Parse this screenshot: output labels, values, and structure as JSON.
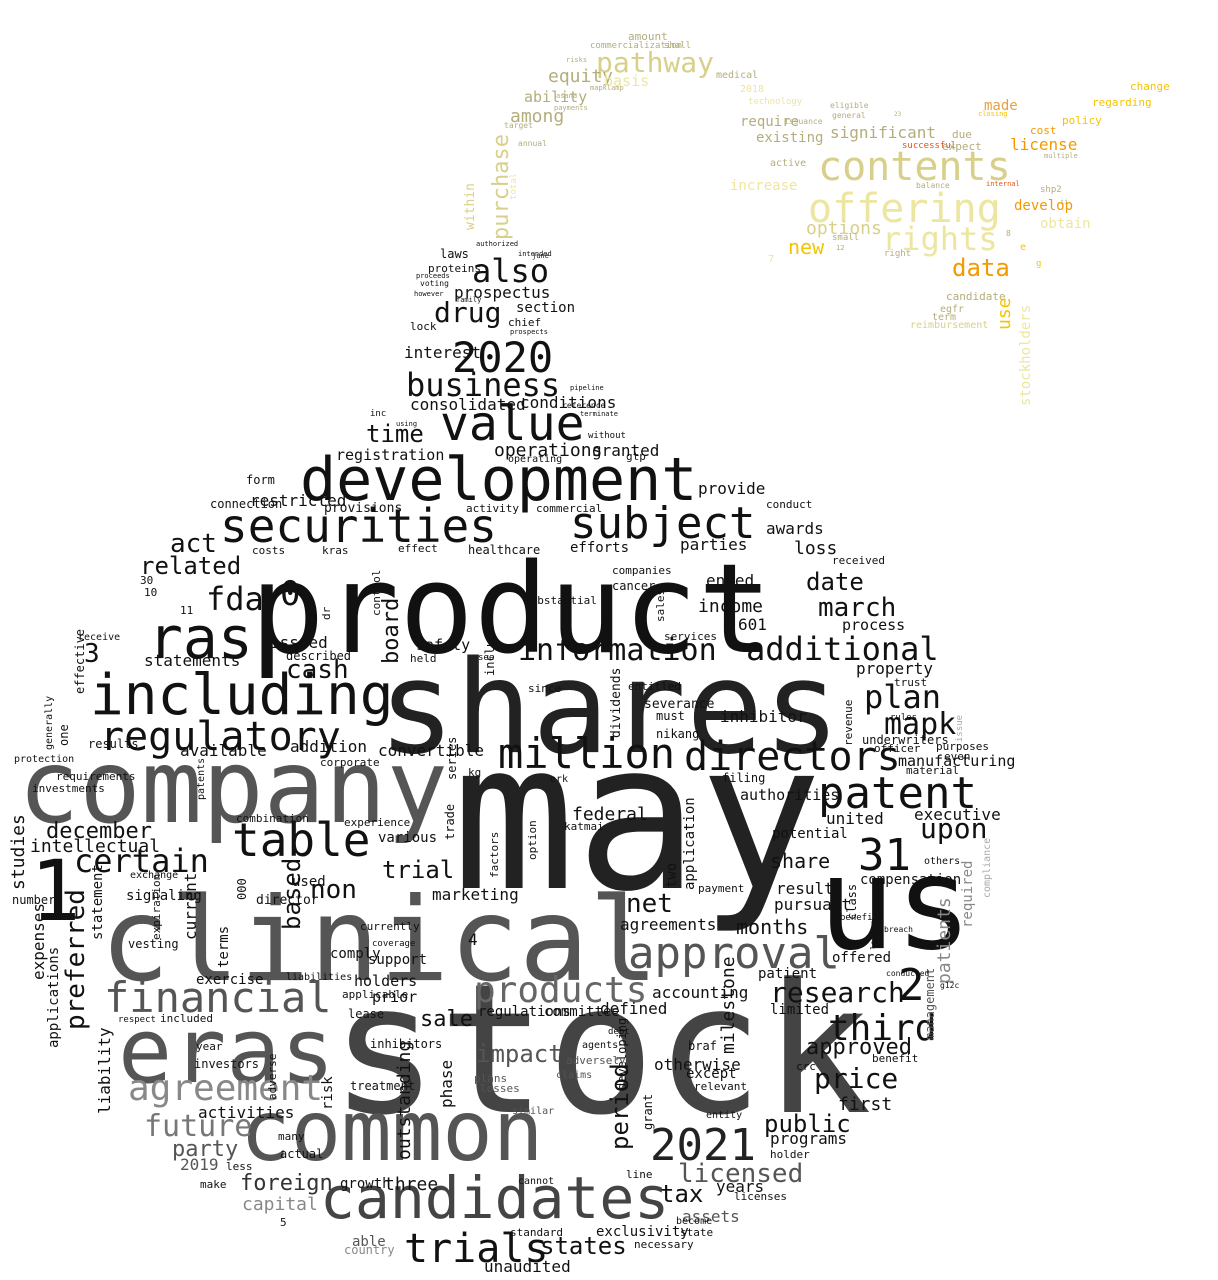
{
  "colors": {
    "background": "#ffffff",
    "black": "#000000",
    "dark": "#333333",
    "mid": "#555555",
    "grey": "#888888",
    "light_grey": "#aaaaaa",
    "tan": "#b4ad7c",
    "khaki": "#d8d08a",
    "pale_yellow": "#ede6a0",
    "yellow": "#f5c400",
    "orange": "#f29a00",
    "red_orange": "#e0541a"
  },
  "words": [
    "may",
    "stock",
    "product",
    "shares",
    "company",
    "clinical",
    "us",
    "common",
    "eras",
    "development",
    "candidates",
    "including",
    "securities",
    "value",
    "subject",
    "ras",
    "approval",
    "financial",
    "2021",
    "million",
    "directors",
    "patent",
    "table",
    "regulatory",
    "trials",
    "products",
    "agreement",
    "2020",
    "business",
    "additional",
    "information",
    "third",
    "certain",
    "contents",
    "offering",
    "rights",
    "pathway",
    "purchase",
    "data",
    "also",
    "drug",
    "fda",
    "plan",
    "mapk",
    "market",
    "december",
    "upon",
    "price",
    "research",
    "31",
    "1",
    "2",
    "0",
    "3",
    "4",
    "time",
    "consolidated",
    "prospectus",
    "operations",
    "granted",
    "registration",
    "related",
    "act",
    "cash",
    "board",
    "statements",
    "issued",
    "described",
    "convertible",
    "addition",
    "available",
    "non",
    "trial",
    "based",
    "net",
    "months",
    "share",
    "result",
    "pursuant",
    "march",
    "date",
    "loss",
    "awards",
    "parties",
    "provide",
    "ended",
    "income",
    "601",
    "process",
    "property",
    "inhibitor",
    "executive",
    "federal",
    "united",
    "preferred",
    "intellectual",
    "studies",
    "expenses",
    "applications",
    "liability",
    "tax",
    "licensed",
    "years",
    "assets",
    "states",
    "unaudited",
    "outstanding",
    "period",
    "future",
    "party",
    "activities",
    "2019",
    "capital",
    "foreign",
    "three",
    "growth",
    "public",
    "programs",
    "approved",
    "first",
    "patients",
    "required",
    "management",
    "compliance",
    "new",
    "options",
    "significant",
    "license",
    "made",
    "develop",
    "obtain",
    "use",
    "stockholders",
    "employee",
    "commercialize",
    "per",
    "amended",
    "007",
    "following",
    "changes",
    "industry",
    "within",
    "total",
    "equity",
    "ability",
    "among",
    "basis",
    "amount",
    "shall",
    "existing",
    "require",
    "active",
    "increase",
    "right",
    "egfr",
    "candidate",
    "term",
    "reimbursement",
    "believe",
    "proteins",
    "laws",
    "chief",
    "section",
    "interest",
    "lock",
    "conditions",
    "operating",
    "gtp",
    "form",
    "restricted",
    "connection",
    "provisions",
    "activity",
    "commercial",
    "healthcare",
    "efforts",
    "cancer",
    "companies",
    "sales",
    "include",
    "control",
    "dr",
    "kras",
    "costs",
    "effect",
    "current",
    "terms",
    "000",
    "exercise",
    "holders",
    "sale",
    "prior",
    "defined",
    "accounting",
    "regulations",
    "committee",
    "impact",
    "phase",
    "braf",
    "except",
    "otherwise",
    "developing",
    "grant",
    "risk",
    "lease",
    "inhibitors",
    "treatment",
    "investors",
    "year",
    "included",
    "adverse",
    "vesting",
    "signaling",
    "number",
    "compensation",
    "trust",
    "material",
    "manufacturing",
    "officer",
    "purposes",
    "even",
    "potential",
    "agreements",
    "marketing",
    "preclinical",
    "used",
    "director",
    "combination",
    "patents",
    "results",
    "one",
    "effective",
    "two",
    "application",
    "payment",
    "offered",
    "patient",
    "limited",
    "milestone",
    "authorities",
    "filing",
    "class",
    "underwriters",
    "revenue",
    "crc",
    "benefit",
    "relevant",
    "entity",
    "holder",
    "licenses",
    "condition",
    "exclusivity",
    "become",
    "state",
    "necessary",
    "standard",
    "tumor",
    "sold",
    "asset",
    "able",
    "country",
    "health",
    "15",
    "5",
    "b",
    "p",
    "make",
    "less",
    "many",
    "actual",
    "various",
    "support",
    "comply",
    "applicable",
    "currently",
    "coverage",
    "expense",
    "liabilities",
    "law",
    "respect",
    "statement",
    "expiration",
    "10",
    "30",
    "11",
    "receive",
    "investments",
    "generally",
    "position",
    "requirements",
    "exchange",
    "protection",
    "corporate",
    "experience",
    "approximately",
    "fair",
    "cell",
    "trade",
    "factors",
    "option",
    "dose",
    "series",
    "safety",
    "held",
    "paid",
    "entitled",
    "dividends",
    "officers",
    "severance",
    "nikang",
    "must",
    "kg",
    "erk",
    "covered",
    "since",
    "amounts",
    "see",
    "services",
    "distribution",
    "katmai",
    "person",
    "substantial",
    "whether",
    "markets",
    "without",
    "terminate",
    "reference",
    "using",
    "inc",
    "pipeline",
    "conduct",
    "mek",
    "received",
    "certificate",
    "fund",
    "investment",
    "pro",
    "bla",
    "continue",
    "rules",
    "increased",
    "oncology",
    "erasca",
    "issue",
    "insurance",
    "legal",
    "others",
    "offer",
    "ownership",
    "employment",
    "agent",
    "scientific",
    "mutations",
    "tumors",
    "herkules",
    "owned",
    "19",
    "expire",
    "breach",
    "letter",
    "benefits",
    "second",
    "conducted",
    "january",
    "key",
    "drugs",
    "early",
    "g12c",
    "single",
    "debt",
    "agents",
    "adversely",
    "claims",
    "provided",
    "event",
    "rule",
    "losses",
    "plans",
    "similar",
    "program",
    "driven",
    "line",
    "cannot",
    "adequate",
    "unable",
    "accelerated",
    "nda",
    "high",
    "day",
    "take",
    "extent",
    "prospects",
    "intended",
    "june",
    "authorized",
    "voting",
    "proceeds",
    "however",
    "family",
    "sufficient",
    "annual",
    "target",
    "payments",
    "commercialization",
    "risks",
    "mapklamp",
    "asana",
    "medical",
    "2018",
    "technology",
    "issuance",
    "eligible",
    "general",
    "successful",
    "expect",
    "due",
    "internal",
    "cost",
    "multiple",
    "policy",
    "closing",
    "regarding",
    "change",
    "shp2",
    "balance",
    "small",
    "12",
    "7",
    "8",
    "e",
    "g",
    "ii",
    "23",
    "13",
    "25",
    "001",
    "&"
  ]
}
